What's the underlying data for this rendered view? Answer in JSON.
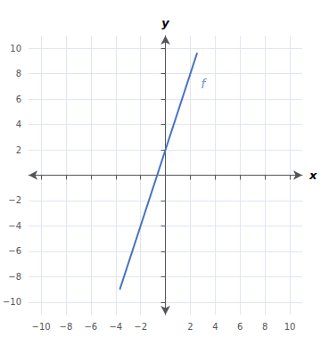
{
  "chart_data": {
    "type": "line",
    "xlabel": "x",
    "ylabel": "y",
    "x": [
      -3.67,
      2.55
    ],
    "values": [
      -9.01,
      9.65
    ],
    "color": "#4472c4",
    "xlim": [
      -11,
      11
    ],
    "ylim": [
      -11,
      11
    ],
    "xticks": [
      {
        "value": -10,
        "label": "−10"
      },
      {
        "value": -8,
        "label": "−8"
      },
      {
        "value": -6,
        "label": "−6"
      },
      {
        "value": -4,
        "label": "−4"
      },
      {
        "value": -2,
        "label": "−2"
      },
      2,
      4,
      6,
      8,
      10
    ],
    "yticks": [
      {
        "value": -10,
        "label": "−10"
      },
      {
        "value": -8,
        "label": "−8"
      },
      {
        "value": -6,
        "label": "−6"
      },
      {
        "value": -4,
        "label": "−4"
      },
      {
        "value": -2,
        "label": "−2"
      },
      2,
      4,
      6,
      8,
      10
    ],
    "grid": true,
    "annotations": [
      {
        "text": "f",
        "x": 2.7,
        "y": 7.2
      }
    ]
  }
}
